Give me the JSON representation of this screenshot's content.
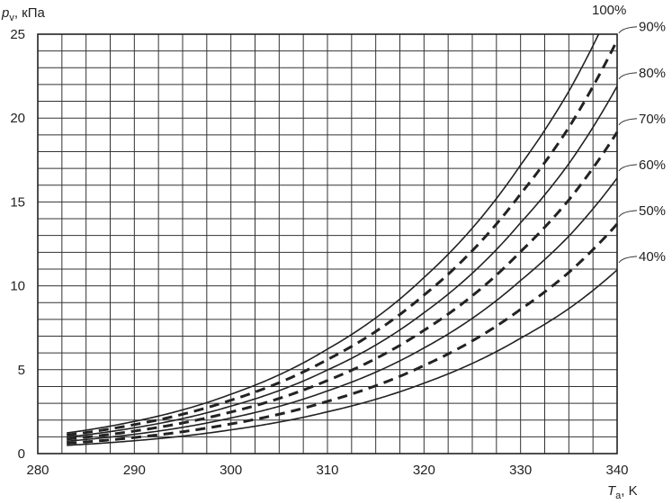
{
  "chart_data": {
    "type": "line",
    "xlabel_main": "T",
    "xlabel_sub": "a",
    "xlabel_unit": ", K",
    "ylabel_main": "p",
    "ylabel_sub": "v",
    "ylabel_unit": ", кПа",
    "xlim": [
      280,
      340
    ],
    "ylim": [
      0,
      25
    ],
    "x_ticks": [
      "280",
      "290",
      "300",
      "310",
      "320",
      "330",
      "340"
    ],
    "y_ticks": [
      "0",
      "5",
      "10",
      "15",
      "20",
      "25"
    ],
    "grid": true,
    "grid_x_step": 2.5,
    "grid_y_step": 1,
    "x_range": [
      283,
      340
    ],
    "saturation_curve": [
      {
        "T": 283,
        "p": 1.23
      },
      {
        "T": 290,
        "p": 1.92
      },
      {
        "T": 300,
        "p": 3.54
      },
      {
        "T": 310,
        "p": 6.23
      },
      {
        "T": 320,
        "p": 10.5
      },
      {
        "T": 330,
        "p": 17.2
      },
      {
        "T": 335,
        "p": 21.6
      },
      {
        "T": 338,
        "p": 24.9
      }
    ],
    "series": [
      {
        "name": "100%",
        "rh": 1.0,
        "dashed": false
      },
      {
        "name": "90%",
        "rh": 0.9,
        "dashed": true
      },
      {
        "name": "80%",
        "rh": 0.8,
        "dashed": false
      },
      {
        "name": "70%",
        "rh": 0.7,
        "dashed": true
      },
      {
        "name": "60%",
        "rh": 0.6,
        "dashed": false
      },
      {
        "name": "50%",
        "rh": 0.5,
        "dashed": true
      },
      {
        "name": "40%",
        "rh": 0.4,
        "dashed": false
      }
    ]
  }
}
